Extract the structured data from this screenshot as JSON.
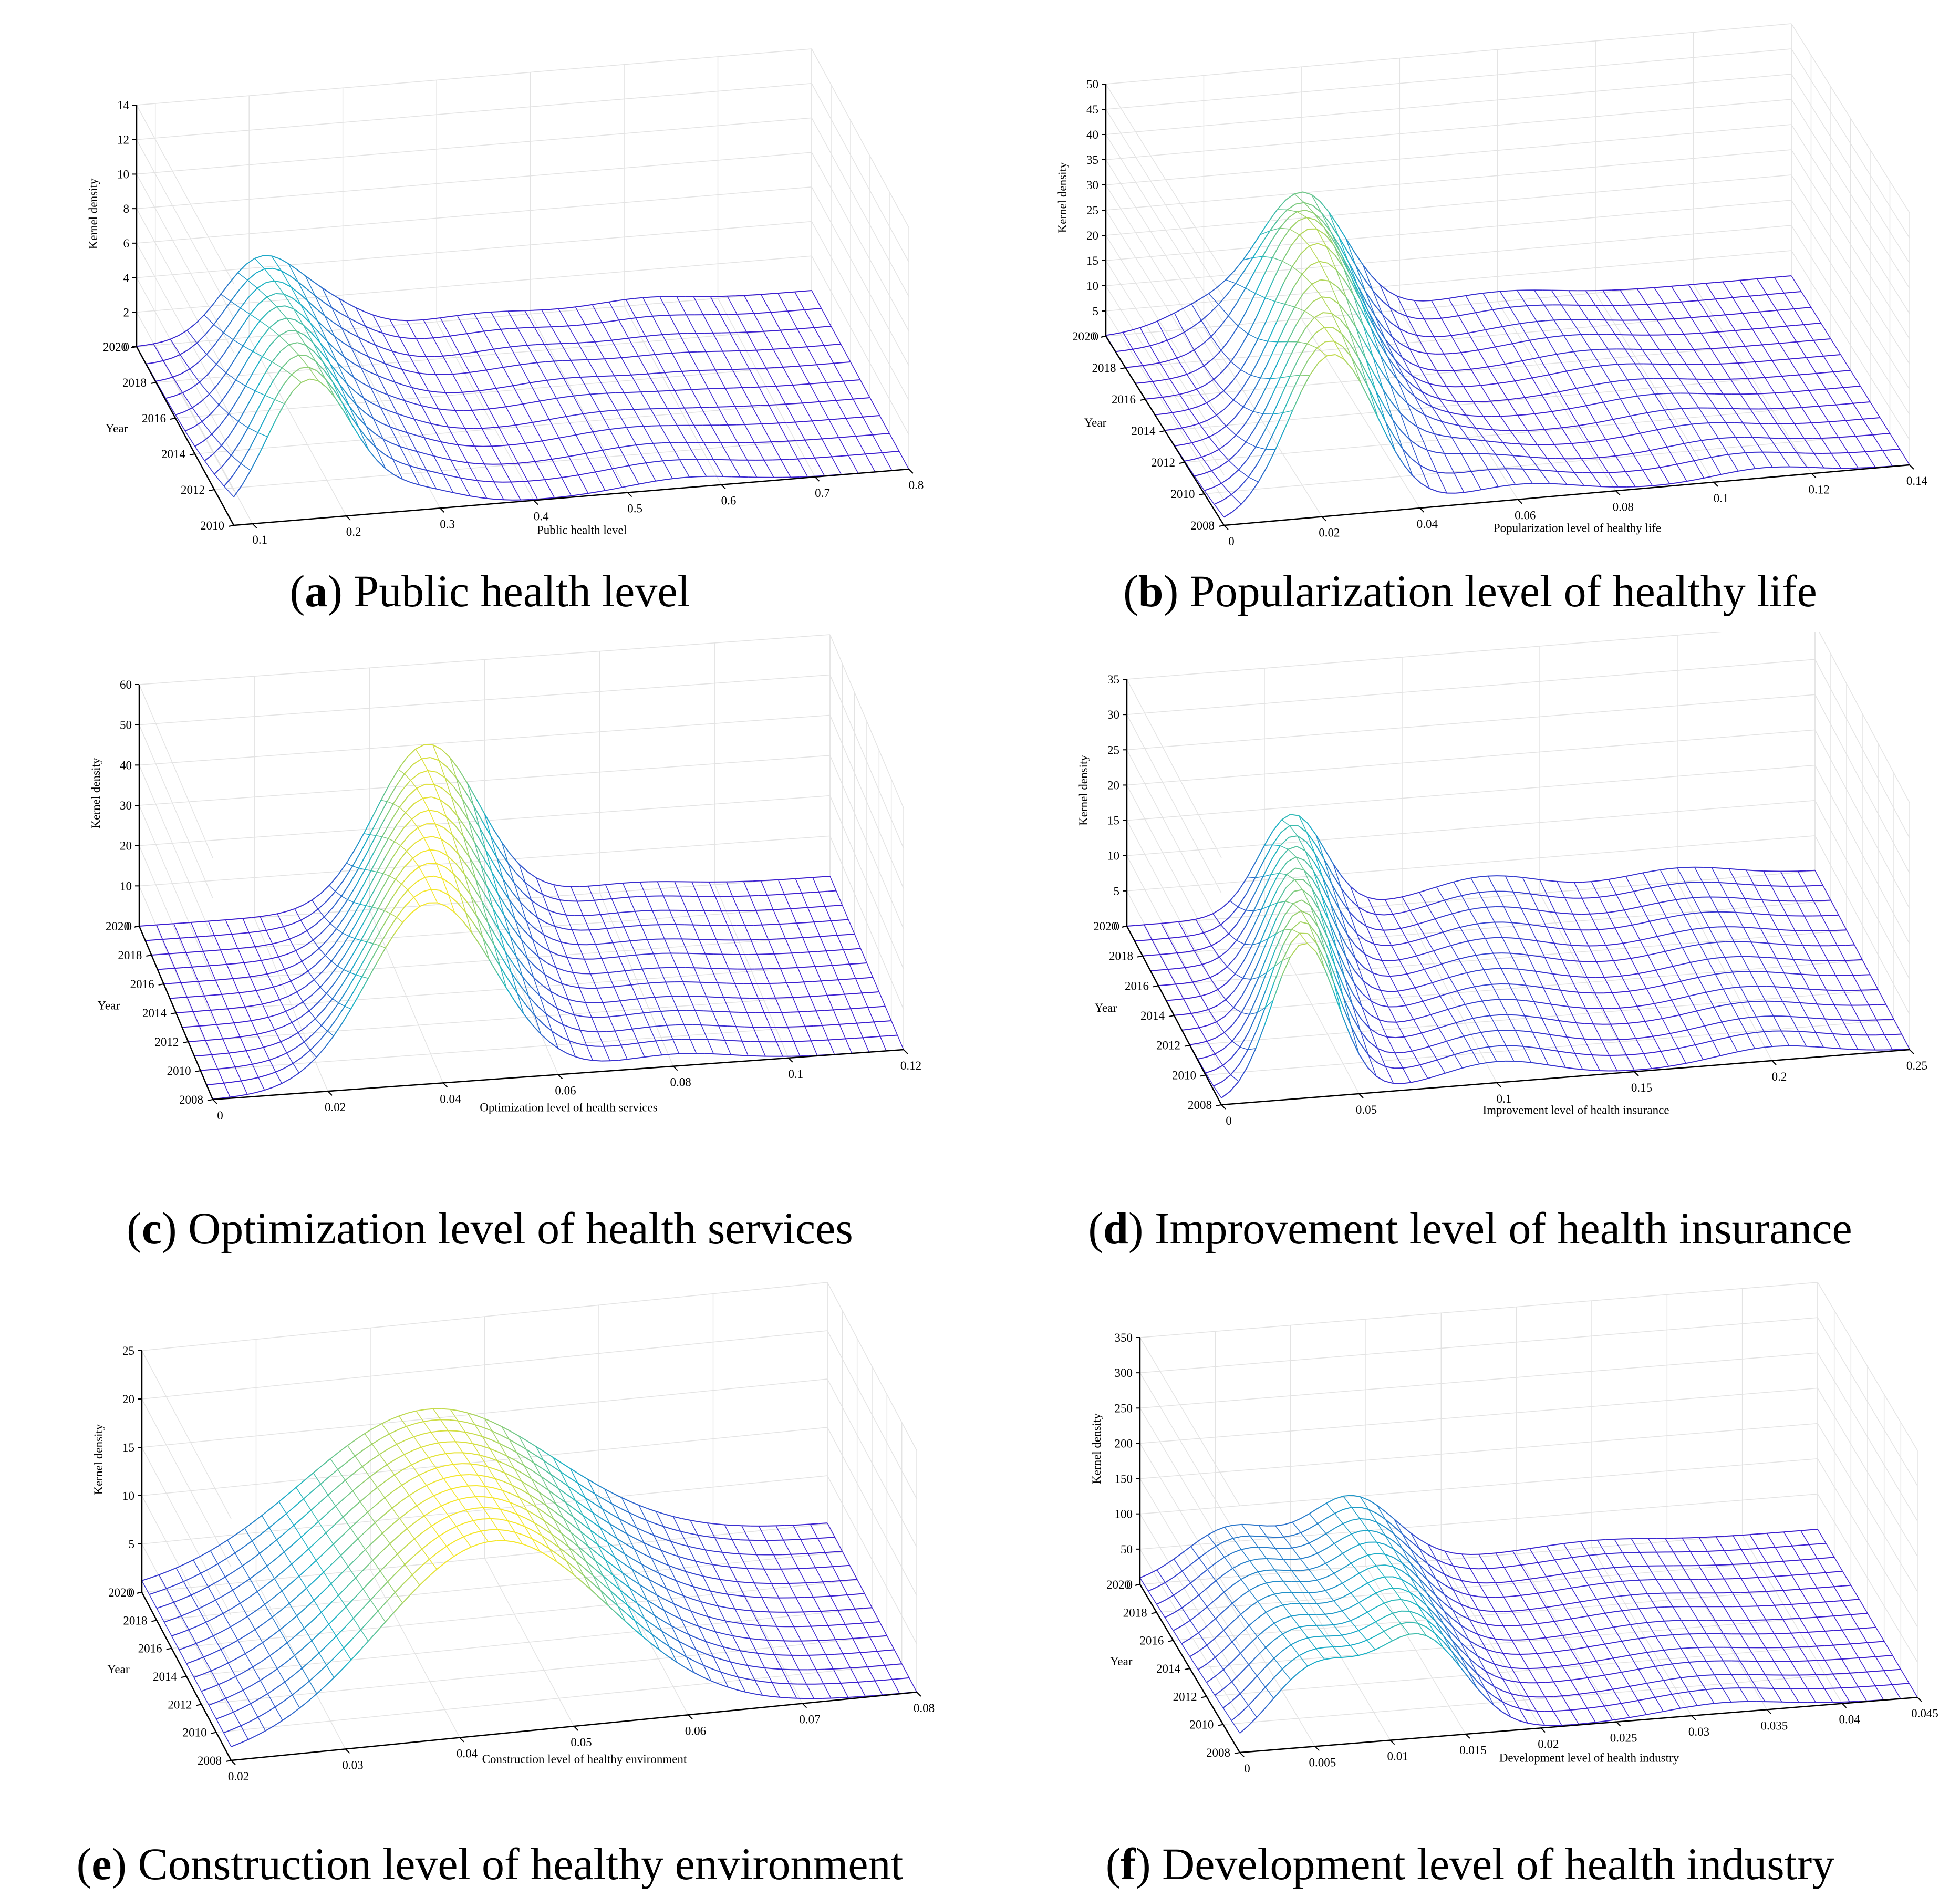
{
  "figure": {
    "colors": {
      "low": "#3d1fd0",
      "mid": "#19b3c6",
      "high": "#f4e62a",
      "grid": "#e3e3e3",
      "axis": "#000000"
    }
  },
  "chart_data": [
    {
      "type": "surface3d",
      "panel_letter": "a",
      "caption": "Public health level",
      "xlabel": "Public health level",
      "ylabel": "Year",
      "zlabel": "Kernel density",
      "xticks": [
        "0.1",
        "0.2",
        "0.3",
        "0.4",
        "0.5",
        "0.6",
        "0.7",
        "0.8"
      ],
      "xlim": [
        0.08,
        0.8
      ],
      "yticks": [
        "2010",
        "2012",
        "2014",
        "2016",
        "2018",
        "2020"
      ],
      "years": [
        2010,
        2011,
        2012,
        2013,
        2014,
        2015,
        2016,
        2017,
        2018,
        2019,
        2020
      ],
      "zticks": [
        "0",
        "2",
        "4",
        "6",
        "8",
        "10",
        "12",
        "14"
      ],
      "zlim": [
        0,
        14
      ],
      "series": [
        {
          "name": "2010",
          "peaks": [
            [
              0.16,
              8.0,
              0.045
            ],
            [
              0.27,
              1.2,
              0.05
            ],
            [
              0.56,
              0.6,
              0.06
            ]
          ]
        },
        {
          "name": "2020",
          "peaks": [
            [
              0.21,
              4.3,
              0.04
            ],
            [
              0.28,
              1.5,
              0.04
            ],
            [
              0.45,
              0.3,
              0.05
            ],
            [
              0.62,
              0.4,
              0.05
            ]
          ]
        }
      ]
    },
    {
      "type": "surface3d",
      "panel_letter": "b",
      "caption": "Popularization level of healthy life",
      "xlabel": "Popularization level of healthy life",
      "ylabel": "Year",
      "zlabel": "Kernel density",
      "xticks": [
        "0",
        "0.02",
        "0.04",
        "0.06",
        "0.08",
        "0.1",
        "0.12",
        "0.14"
      ],
      "xlim": [
        0,
        0.14
      ],
      "yticks": [
        "2008",
        "2010",
        "2012",
        "2014",
        "2016",
        "2018",
        "2020"
      ],
      "years": [
        2008,
        2009,
        2010,
        2011,
        2012,
        2013,
        2014,
        2015,
        2016,
        2017,
        2018,
        2019,
        2020
      ],
      "zticks": [
        "0",
        "5",
        "10",
        "15",
        "20",
        "25",
        "30",
        "35",
        "40",
        "45",
        "50"
      ],
      "zlim": [
        0,
        50
      ],
      "series": [
        {
          "name": "2008",
          "peaks": [
            [
              0.022,
              32,
              0.009
            ],
            [
              0.06,
              3,
              0.012
            ],
            [
              0.11,
              2,
              0.01
            ]
          ]
        },
        {
          "name": "2020",
          "peaks": [
            [
              0.04,
              25,
              0.009
            ],
            [
              0.02,
              4,
              0.008
            ],
            [
              0.08,
              2,
              0.012
            ]
          ]
        }
      ]
    },
    {
      "type": "surface3d",
      "panel_letter": "c",
      "caption": "Optimization level of health services",
      "xlabel": "Optimization level of health services",
      "ylabel": "Year",
      "zlabel": "Kernel density",
      "xticks": [
        "0",
        "0.02",
        "0.04",
        "0.06",
        "0.08",
        "0.1",
        "0.12"
      ],
      "xlim": [
        0,
        0.12
      ],
      "yticks": [
        "2008",
        "2010",
        "2012",
        "2014",
        "2016",
        "2018",
        "2020"
      ],
      "years": [
        2008,
        2009,
        2010,
        2011,
        2012,
        2013,
        2014,
        2015,
        2016,
        2017,
        2018,
        2019,
        2020
      ],
      "zticks": [
        "0",
        "10",
        "20",
        "30",
        "40",
        "50",
        "60"
      ],
      "zlim": [
        0,
        60
      ],
      "series": [
        {
          "name": "2008",
          "peaks": [
            [
              0.038,
              45,
              0.011
            ],
            [
              0.08,
              3,
              0.01
            ]
          ]
        },
        {
          "name": "2020",
          "peaks": [
            [
              0.05,
              40,
              0.009
            ],
            [
              0.085,
              2,
              0.01
            ]
          ]
        }
      ]
    },
    {
      "type": "surface3d",
      "panel_letter": "d",
      "caption": "Improvement level of health insurance",
      "xlabel": "Improvement level of health insurance",
      "ylabel": "Year",
      "zlabel": "Kernel density",
      "xticks": [
        "0",
        "0.05",
        "0.1",
        "0.15",
        "0.2",
        "0.25"
      ],
      "xlim": [
        0,
        0.25
      ],
      "yticks": [
        "2008",
        "2010",
        "2012",
        "2014",
        "2016",
        "2018",
        "2020"
      ],
      "years": [
        2008,
        2009,
        2010,
        2011,
        2012,
        2013,
        2014,
        2015,
        2016,
        2017,
        2018,
        2019,
        2020
      ],
      "zticks": [
        "0",
        "5",
        "10",
        "15",
        "20",
        "25",
        "30",
        "35"
      ],
      "zlim": [
        0,
        35
      ],
      "series": [
        {
          "name": "2008",
          "peaks": [
            [
              0.03,
              22,
              0.012
            ],
            [
              0.1,
              3,
              0.02
            ],
            [
              0.2,
              2,
              0.02
            ]
          ]
        },
        {
          "name": "2020",
          "peaks": [
            [
              0.06,
              14,
              0.012
            ],
            [
              0.13,
              3,
              0.02
            ],
            [
              0.2,
              2,
              0.02
            ]
          ]
        }
      ]
    },
    {
      "type": "surface3d",
      "panel_letter": "e",
      "caption": "Construction level of healthy environment",
      "xlabel": "Construction level of healthy environment",
      "ylabel": "Year",
      "zlabel": "Kernel density",
      "xticks": [
        "0.02",
        "0.03",
        "0.04",
        "0.05",
        "0.06",
        "0.07",
        "0.08"
      ],
      "xlim": [
        0.02,
        0.08
      ],
      "yticks": [
        "2008",
        "2010",
        "2012",
        "2014",
        "2016",
        "2018",
        "2020"
      ],
      "years": [
        2008,
        2009,
        2010,
        2011,
        2012,
        2013,
        2014,
        2015,
        2016,
        2017,
        2018,
        2019,
        2020
      ],
      "zticks": [
        "0",
        "5",
        "10",
        "15",
        "20",
        "25"
      ],
      "zlim": [
        0,
        25
      ],
      "series": [
        {
          "name": "2008",
          "peaks": [
            [
              0.043,
              20,
              0.01
            ]
          ]
        },
        {
          "name": "2020",
          "peaks": [
            [
              0.045,
              16,
              0.011
            ]
          ]
        }
      ]
    },
    {
      "type": "surface3d",
      "panel_letter": "f",
      "caption": "Development level of health industry",
      "xlabel": "Development level of health industry",
      "ylabel": "Year",
      "zlabel": "Kernel density",
      "xticks": [
        "0",
        "0.005",
        "0.01",
        "0.015",
        "0.02",
        "0.025",
        "0.03",
        "0.035",
        "0.04",
        "0.045"
      ],
      "xlim": [
        0,
        0.045
      ],
      "yticks": [
        "2008",
        "2010",
        "2012",
        "2014",
        "2016",
        "2018",
        "2020"
      ],
      "years": [
        2008,
        2009,
        2010,
        2011,
        2012,
        2013,
        2014,
        2015,
        2016,
        2017,
        2018,
        2019,
        2020
      ],
      "zticks": [
        "0",
        "50",
        "100",
        "150",
        "200",
        "250",
        "300",
        "350"
      ],
      "zlim": [
        0,
        350
      ],
      "series": [
        {
          "name": "2008",
          "peaks": [
            [
              0.005,
              110,
              0.003
            ],
            [
              0.012,
              140,
              0.003
            ],
            [
              0.032,
              15,
              0.004
            ]
          ]
        },
        {
          "name": "2020",
          "peaks": [
            [
              0.006,
              70,
              0.003
            ],
            [
              0.014,
              100,
              0.003
            ],
            [
              0.03,
              10,
              0.004
            ]
          ]
        }
      ]
    }
  ]
}
